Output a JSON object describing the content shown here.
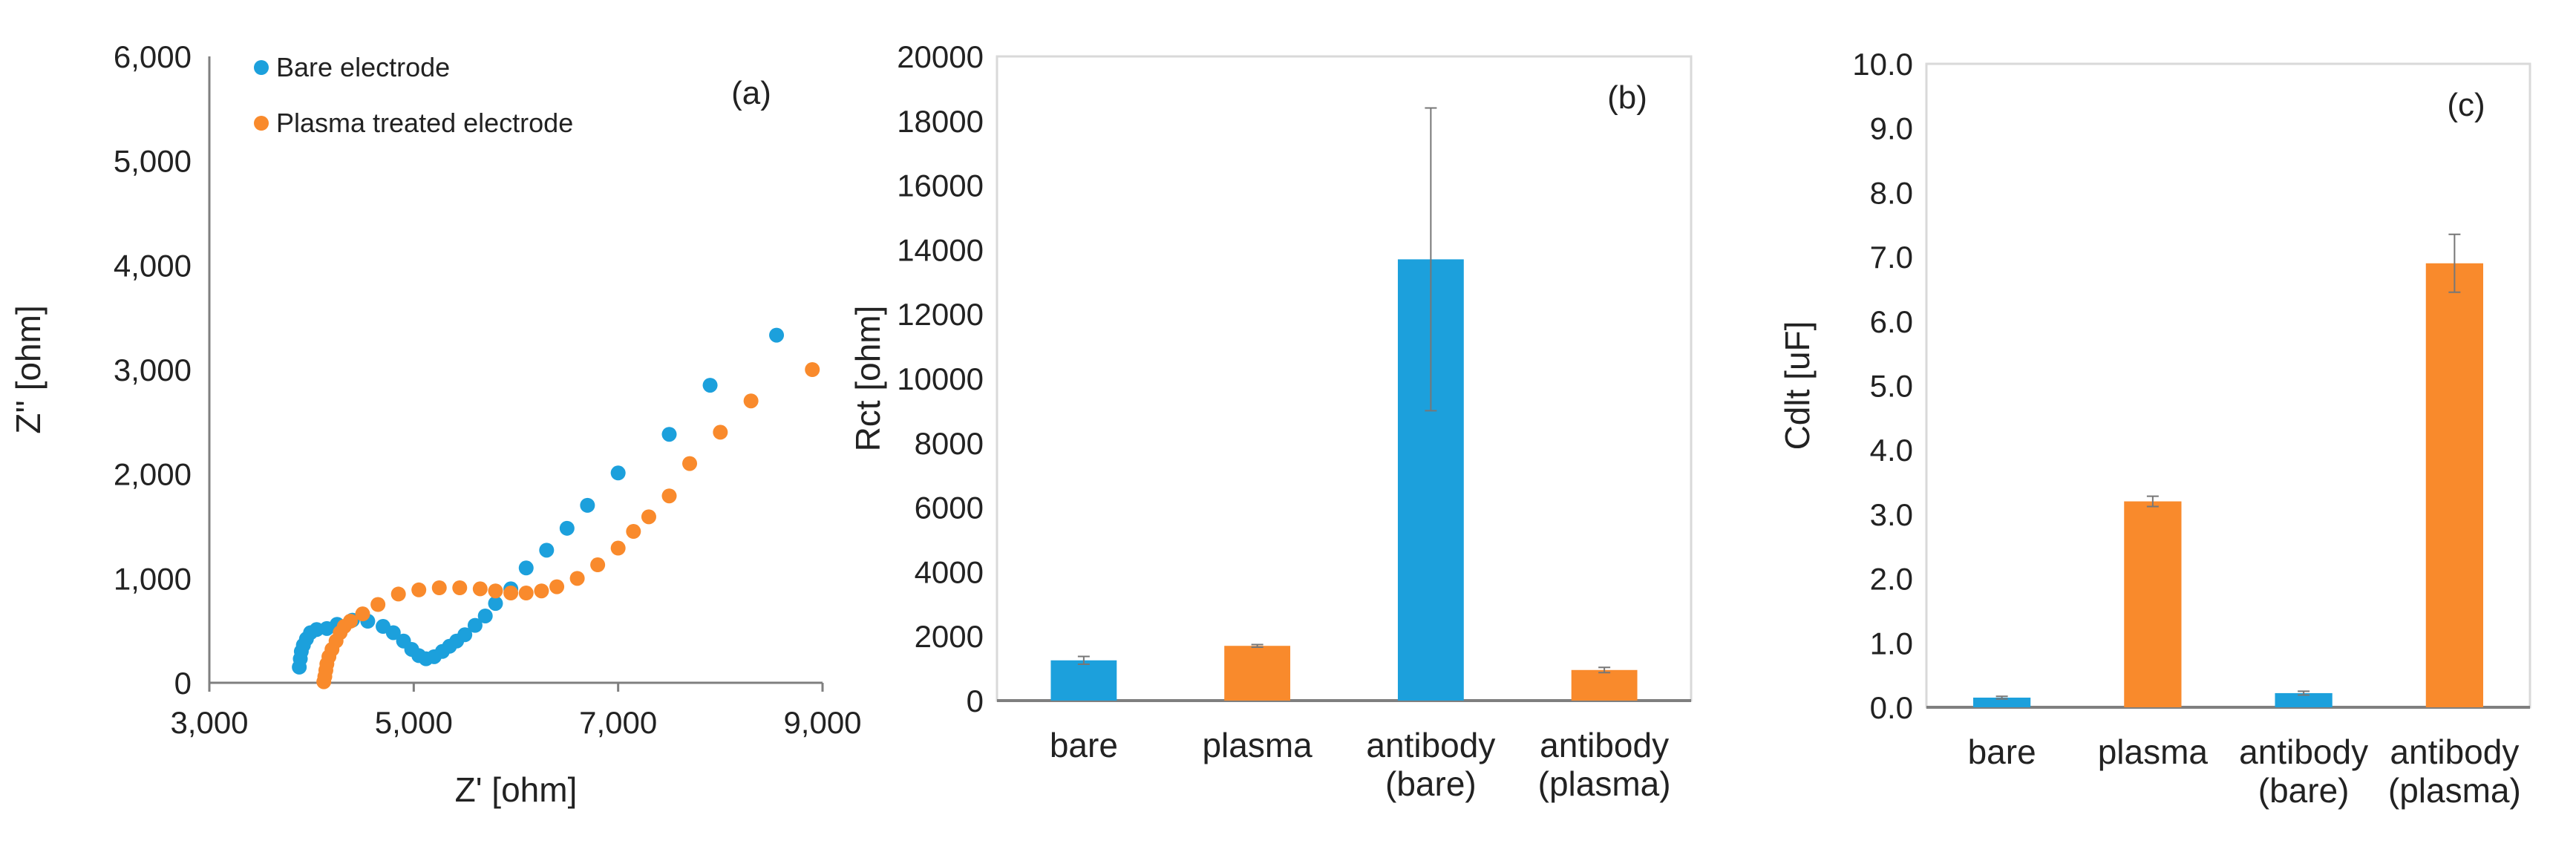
{
  "colors": {
    "blue": "#1ca0dc",
    "orange": "#f98a2c",
    "axis": "#7f7f7f",
    "frame": "#d9d9d9",
    "error": "#777777"
  },
  "chart_data": [
    {
      "panel": "(a)",
      "type": "scatter",
      "xlabel": "Z' [ohm]",
      "ylabel": "Z'' [ohm]",
      "xlim": [
        3000,
        9000
      ],
      "ylim": [
        0,
        6000
      ],
      "xticks": [
        3000,
        5000,
        7000,
        9000
      ],
      "xtick_labels": [
        "3,000",
        "5,000",
        "7,000",
        "9,000"
      ],
      "yticks": [
        0,
        1000,
        2000,
        3000,
        4000,
        5000,
        6000
      ],
      "ytick_labels": [
        "0",
        "1,000",
        "2,000",
        "3,000",
        "4,000",
        "5,000",
        "6,000"
      ],
      "legend_position": "top-left",
      "series": [
        {
          "name": "Bare electrode",
          "color": "#1ca0dc",
          "points": [
            [
              3880,
              150
            ],
            [
              3890,
              230
            ],
            [
              3900,
              300
            ],
            [
              3920,
              360
            ],
            [
              3950,
              420
            ],
            [
              3990,
              480
            ],
            [
              4050,
              510
            ],
            [
              4150,
              520
            ],
            [
              4250,
              560
            ],
            [
              4400,
              600
            ],
            [
              4550,
              590
            ],
            [
              4700,
              540
            ],
            [
              4800,
              480
            ],
            [
              4900,
              400
            ],
            [
              4980,
              320
            ],
            [
              5050,
              260
            ],
            [
              5120,
              230
            ],
            [
              5200,
              250
            ],
            [
              5280,
              300
            ],
            [
              5350,
              350
            ],
            [
              5420,
              400
            ],
            [
              5500,
              460
            ],
            [
              5600,
              550
            ],
            [
              5700,
              640
            ],
            [
              5800,
              760
            ],
            [
              5950,
              900
            ],
            [
              6100,
              1100
            ],
            [
              6300,
              1270
            ],
            [
              6500,
              1480
            ],
            [
              6700,
              1700
            ],
            [
              7000,
              2010
            ],
            [
              7500,
              2380
            ],
            [
              7900,
              2850
            ],
            [
              8550,
              3330
            ]
          ]
        },
        {
          "name": "Plasma treated electrode",
          "color": "#f98a2c",
          "points": [
            [
              4120,
              10
            ],
            [
              4130,
              60
            ],
            [
              4140,
              120
            ],
            [
              4150,
              180
            ],
            [
              4170,
              250
            ],
            [
              4200,
              320
            ],
            [
              4240,
              400
            ],
            [
              4280,
              480
            ],
            [
              4320,
              540
            ],
            [
              4380,
              590
            ],
            [
              4500,
              660
            ],
            [
              4650,
              750
            ],
            [
              4850,
              850
            ],
            [
              5050,
              890
            ],
            [
              5250,
              910
            ],
            [
              5450,
              910
            ],
            [
              5650,
              900
            ],
            [
              5800,
              880
            ],
            [
              5950,
              860
            ],
            [
              6100,
              860
            ],
            [
              6250,
              880
            ],
            [
              6400,
              920
            ],
            [
              6600,
              1000
            ],
            [
              6800,
              1130
            ],
            [
              7000,
              1290
            ],
            [
              7150,
              1450
            ],
            [
              7300,
              1590
            ],
            [
              7500,
              1790
            ],
            [
              7700,
              2100
            ],
            [
              8000,
              2400
            ],
            [
              8300,
              2700
            ],
            [
              8900,
              3000
            ]
          ]
        }
      ]
    },
    {
      "panel": "(b)",
      "type": "bar",
      "ylabel": "Rct [ohm]",
      "ylim": [
        0,
        20000
      ],
      "yticks": [
        0,
        2000,
        4000,
        6000,
        8000,
        10000,
        12000,
        14000,
        16000,
        18000,
        20000
      ],
      "categories": [
        [
          "bare"
        ],
        [
          "plasma"
        ],
        [
          "antibody",
          "(bare)"
        ],
        [
          "antibody",
          "(plasma)"
        ]
      ],
      "values": [
        1250,
        1700,
        13700,
        950
      ],
      "errors": [
        120,
        40,
        4700,
        80
      ],
      "bar_colors": [
        "#1ca0dc",
        "#f98a2c",
        "#1ca0dc",
        "#f98a2c"
      ]
    },
    {
      "panel": "(c)",
      "type": "bar",
      "ylabel": "Cdlt [uF]",
      "ylim": [
        0,
        10
      ],
      "yticks": [
        0,
        1,
        2,
        3,
        4,
        5,
        6,
        7,
        8,
        9,
        10
      ],
      "ytick_labels": [
        "0.0",
        "1.0",
        "2.0",
        "3.0",
        "4.0",
        "5.0",
        "6.0",
        "7.0",
        "8.0",
        "9.0",
        "10.0"
      ],
      "categories": [
        [
          "bare"
        ],
        [
          "plasma"
        ],
        [
          "antibody",
          "(bare)"
        ],
        [
          "antibody",
          "(plasma)"
        ]
      ],
      "values": [
        0.15,
        3.2,
        0.22,
        6.9
      ],
      "errors": [
        0.02,
        0.08,
        0.03,
        0.45
      ],
      "bar_colors": [
        "#1ca0dc",
        "#f98a2c",
        "#1ca0dc",
        "#f98a2c"
      ]
    }
  ]
}
